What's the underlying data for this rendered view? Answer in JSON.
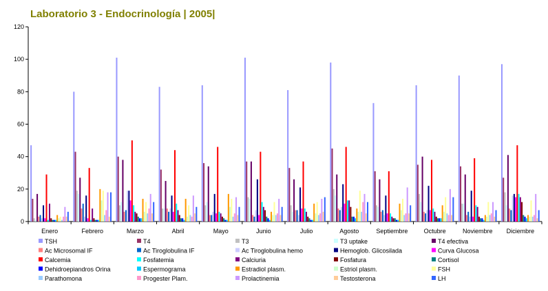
{
  "title": "Laboratorio 3 - Endocrinología | 2005|",
  "chart_data": {
    "type": "bar",
    "title": "Laboratorio 3 - Endocrinología | 2005|",
    "xlabel": "",
    "ylabel": "",
    "ylim": [
      0,
      120
    ],
    "yticks": [
      0,
      20,
      40,
      60,
      80,
      100,
      120
    ],
    "grid": false,
    "legend_position": "bottom",
    "categories": [
      "Enero",
      "Febrero",
      "Marzo",
      "Abril",
      "Mayo",
      "Junio",
      "Julio",
      "Agosto",
      "Septiembre",
      "Octubre",
      "Noviembre",
      "Diciembre"
    ],
    "series": [
      {
        "name": "TSH",
        "color": "#9999ff",
        "values": [
          47,
          80,
          101,
          83,
          84,
          101,
          81,
          98,
          73,
          84,
          90,
          97
        ]
      },
      {
        "name": "T4",
        "color": "#993366",
        "values": [
          14,
          43,
          40,
          32,
          36,
          37,
          33,
          45,
          31,
          35,
          34,
          27
        ]
      },
      {
        "name": "T3",
        "color": "#c0c0c0",
        "values": [
          2,
          19,
          10,
          8,
          10,
          15,
          10,
          20,
          10,
          17,
          11,
          18
        ]
      },
      {
        "name": "T3 uptake",
        "color": "#ccffff",
        "values": [
          1,
          17,
          12,
          8,
          12,
          14,
          6,
          16,
          9,
          12,
          11,
          10
        ]
      },
      {
        "name": "T4 efectiva",
        "color": "#660066",
        "values": [
          17,
          27,
          38,
          25,
          34,
          37,
          26,
          29,
          26,
          40,
          29,
          41
        ]
      },
      {
        "name": "Ac Microsomal IF",
        "color": "#ff8080",
        "values": [
          3,
          8,
          6,
          8,
          4,
          4,
          7,
          8,
          6,
          6,
          4,
          8
        ]
      },
      {
        "name": "Ac Tiroglobulina IF",
        "color": "#0066cc",
        "values": [
          4,
          11,
          7,
          6,
          4,
          3,
          7,
          7,
          7,
          5,
          6,
          7
        ]
      },
      {
        "name": "Ac Tiroglobulina hemo",
        "color": "#ccccff",
        "values": [
          2,
          3,
          19,
          8,
          6,
          7,
          4,
          9,
          4,
          7,
          3,
          16
        ]
      },
      {
        "name": "Hemoglob. Glicosilada",
        "color": "#000080",
        "values": [
          10,
          16,
          19,
          16,
          17,
          26,
          21,
          23,
          16,
          22,
          19,
          17
        ]
      },
      {
        "name": "Curva Glucosa",
        "color": "#ff00ff",
        "values": [
          2,
          2,
          13,
          6,
          5,
          4,
          8,
          11,
          5,
          7,
          3,
          15
        ]
      },
      {
        "name": "Calcemia",
        "color": "#ff0000",
        "values": [
          29,
          33,
          50,
          44,
          46,
          43,
          37,
          46,
          31,
          38,
          39,
          47
        ]
      },
      {
        "name": "Fosfatemia",
        "color": "#00ffff",
        "values": [
          1,
          1,
          10,
          11,
          6,
          12,
          8,
          13,
          5,
          8,
          10,
          17
        ]
      },
      {
        "name": "Calciuria",
        "color": "#800080",
        "values": [
          11,
          8,
          6,
          7,
          5,
          9,
          6,
          13,
          3,
          6,
          9,
          15
        ]
      },
      {
        "name": "Fosfatura",
        "color": "#800000",
        "values": [
          2,
          2,
          5,
          4,
          3,
          7,
          3,
          9,
          2,
          3,
          3,
          12
        ]
      },
      {
        "name": "Cortisol",
        "color": "#008080",
        "values": [
          1,
          1,
          3,
          2,
          2,
          3,
          2,
          3,
          2,
          2,
          2,
          4
        ]
      },
      {
        "name": "Dehidroepiandros Orina",
        "color": "#0000ff",
        "values": [
          1,
          1,
          2,
          2,
          1,
          2,
          1,
          3,
          1,
          2,
          2,
          3
        ]
      },
      {
        "name": "Espermograma",
        "color": "#00ccff",
        "values": [
          1,
          1,
          2,
          1,
          1,
          1,
          1,
          2,
          1,
          2,
          1,
          2
        ]
      },
      {
        "name": "Estradiol plasm.",
        "color": "#ff9900",
        "values": [
          4,
          20,
          14,
          14,
          17,
          6,
          11,
          8,
          11,
          10,
          4,
          4
        ]
      },
      {
        "name": "Estriol plasm.",
        "color": "#ccffcc",
        "values": [
          2,
          13,
          6,
          3,
          9,
          4,
          5,
          6,
          7,
          6,
          3,
          3
        ]
      },
      {
        "name": "FSH",
        "color": "#ffff99",
        "values": [
          3,
          19,
          12,
          10,
          14,
          12,
          12,
          19,
          14,
          15,
          12,
          13
        ]
      },
      {
        "name": "Parathomona",
        "color": "#99ccff",
        "values": [
          1,
          4,
          5,
          4,
          3,
          4,
          4,
          6,
          4,
          5,
          4,
          3
        ]
      },
      {
        "name": "Progester Plam.",
        "color": "#ff99cc",
        "values": [
          3,
          7,
          8,
          3,
          5,
          5,
          5,
          12,
          5,
          4,
          5,
          4
        ]
      },
      {
        "name": "Prolactinemia",
        "color": "#cc99ff",
        "values": [
          9,
          18,
          17,
          16,
          15,
          14,
          14,
          17,
          21,
          20,
          12,
          17
        ]
      },
      {
        "name": "Testosterona",
        "color": "#ffcc99",
        "values": [
          3,
          3,
          5,
          5,
          4,
          4,
          6,
          5,
          5,
          4,
          3,
          2
        ]
      },
      {
        "name": "LH",
        "color": "#3366ff",
        "values": [
          6,
          18,
          12,
          9,
          9,
          9,
          15,
          12,
          10,
          15,
          7,
          7
        ]
      }
    ]
  }
}
